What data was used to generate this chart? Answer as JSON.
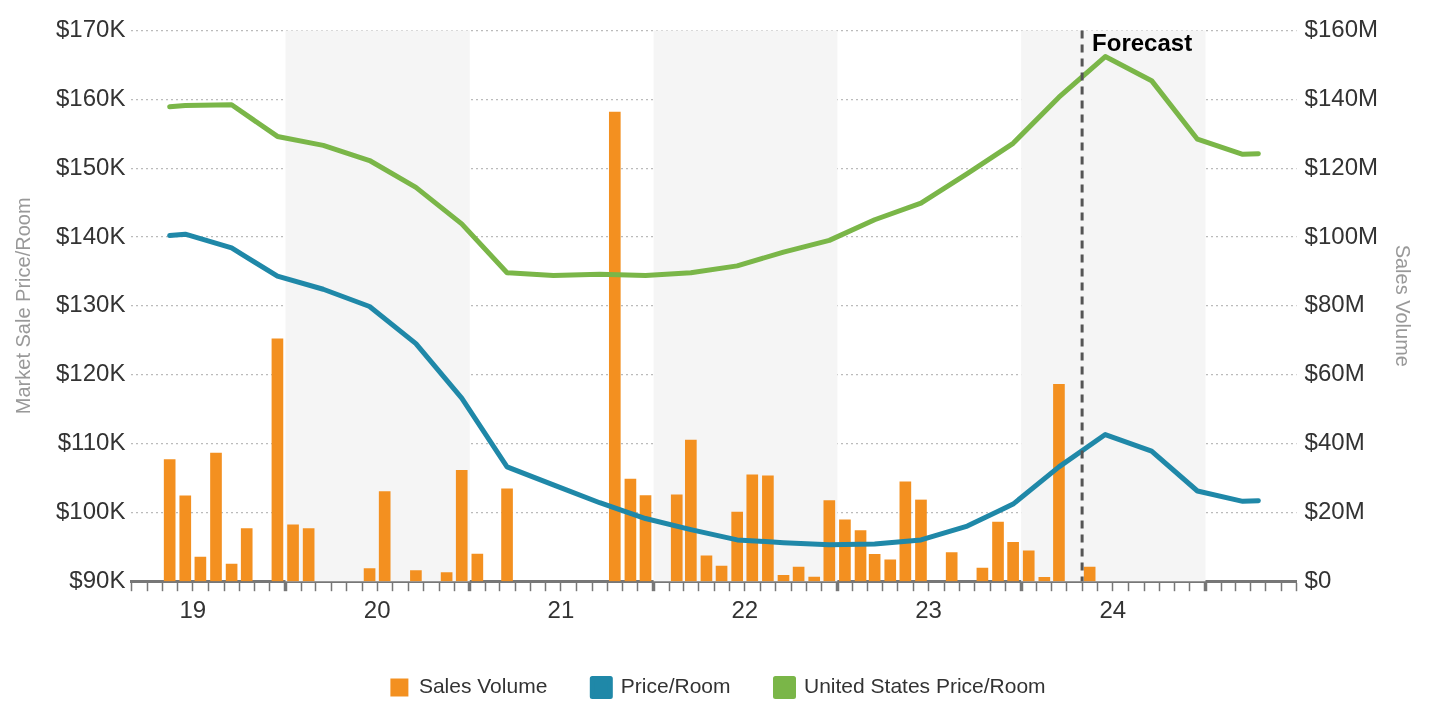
{
  "chart_data": {
    "type": "bar",
    "ylabel": "Market Sale Price/Room",
    "y2label": "Sales Volume",
    "xlim": [
      "2019-03-01",
      "2025-07-01"
    ],
    "xticks": [
      {
        "value": "2019-03-01",
        "label": null
      },
      {
        "value": "2019-04-01",
        "label": null
      },
      {
        "value": "2019-05-01",
        "label": null
      },
      {
        "value": "2019-06-01",
        "label": null
      },
      {
        "value": "2019-07-01",
        "label": "19"
      },
      {
        "value": "2019-08-01",
        "label": null
      },
      {
        "value": "2019-09-01",
        "label": null
      },
      {
        "value": "2019-10-01",
        "label": null
      },
      {
        "value": "2019-11-01",
        "label": null
      },
      {
        "value": "2019-12-01",
        "label": null
      },
      {
        "value": "2020-01-01",
        "label": null
      },
      {
        "value": "2020-02-01",
        "label": null
      },
      {
        "value": "2020-03-01",
        "label": null
      },
      {
        "value": "2020-04-01",
        "label": null
      },
      {
        "value": "2020-05-01",
        "label": null
      },
      {
        "value": "2020-06-01",
        "label": null
      },
      {
        "value": "2020-07-01",
        "label": "20"
      },
      {
        "value": "2020-08-01",
        "label": null
      },
      {
        "value": "2020-09-01",
        "label": null
      },
      {
        "value": "2020-10-01",
        "label": null
      },
      {
        "value": "2020-11-01",
        "label": null
      },
      {
        "value": "2020-12-01",
        "label": null
      },
      {
        "value": "2021-01-01",
        "label": null
      },
      {
        "value": "2021-02-01",
        "label": null
      },
      {
        "value": "2021-03-01",
        "label": null
      },
      {
        "value": "2021-04-01",
        "label": null
      },
      {
        "value": "2021-05-01",
        "label": null
      },
      {
        "value": "2021-06-01",
        "label": null
      },
      {
        "value": "2021-07-01",
        "label": "21"
      },
      {
        "value": "2021-08-01",
        "label": null
      },
      {
        "value": "2021-09-01",
        "label": null
      },
      {
        "value": "2021-10-01",
        "label": null
      },
      {
        "value": "2021-11-01",
        "label": null
      },
      {
        "value": "2021-12-01",
        "label": null
      },
      {
        "value": "2022-01-01",
        "label": null
      },
      {
        "value": "2022-02-01",
        "label": null
      },
      {
        "value": "2022-03-01",
        "label": null
      },
      {
        "value": "2022-04-01",
        "label": null
      },
      {
        "value": "2022-05-01",
        "label": null
      },
      {
        "value": "2022-06-01",
        "label": null
      },
      {
        "value": "2022-07-01",
        "label": "22"
      },
      {
        "value": "2022-08-01",
        "label": null
      },
      {
        "value": "2022-09-01",
        "label": null
      },
      {
        "value": "2022-10-01",
        "label": null
      },
      {
        "value": "2022-11-01",
        "label": null
      },
      {
        "value": "2022-12-01",
        "label": null
      },
      {
        "value": "2023-01-01",
        "label": null
      },
      {
        "value": "2023-02-01",
        "label": null
      },
      {
        "value": "2023-03-01",
        "label": null
      },
      {
        "value": "2023-04-01",
        "label": null
      },
      {
        "value": "2023-05-01",
        "label": null
      },
      {
        "value": "2023-06-01",
        "label": null
      },
      {
        "value": "2023-07-01",
        "label": "23"
      },
      {
        "value": "2023-08-01",
        "label": null
      },
      {
        "value": "2023-09-01",
        "label": null
      },
      {
        "value": "2023-10-01",
        "label": null
      },
      {
        "value": "2023-11-01",
        "label": null
      },
      {
        "value": "2023-12-01",
        "label": null
      },
      {
        "value": "2024-01-01",
        "label": null
      },
      {
        "value": "2024-02-01",
        "label": null
      },
      {
        "value": "2024-03-01",
        "label": null
      },
      {
        "value": "2024-04-01",
        "label": null
      },
      {
        "value": "2024-05-01",
        "label": null
      },
      {
        "value": "2024-06-01",
        "label": null
      },
      {
        "value": "2024-07-01",
        "label": "24"
      },
      {
        "value": "2024-08-01",
        "label": null
      },
      {
        "value": "2024-09-01",
        "label": null
      },
      {
        "value": "2024-10-01",
        "label": null
      },
      {
        "value": "2024-11-01",
        "label": null
      },
      {
        "value": "2024-12-01",
        "label": null
      },
      {
        "value": "2025-01-01",
        "label": null
      },
      {
        "value": "2025-02-01",
        "label": null
      },
      {
        "value": "2025-03-01",
        "label": null
      },
      {
        "value": "2025-04-01",
        "label": null
      },
      {
        "value": "2025-05-01",
        "label": null
      },
      {
        "value": "2025-06-01",
        "label": null
      },
      {
        "value": "2025-07-01",
        "label": null
      }
    ],
    "ylim": [
      90,
      170
    ],
    "yticks": [
      {
        "value": 90,
        "label": "$90K"
      },
      {
        "value": 100,
        "label": "$100K"
      },
      {
        "value": 110,
        "label": "$110K"
      },
      {
        "value": 120,
        "label": "$120K"
      },
      {
        "value": 130,
        "label": "$130K"
      },
      {
        "value": 140,
        "label": "$140K"
      },
      {
        "value": 150,
        "label": "$150K"
      },
      {
        "value": 160,
        "label": "$160K"
      },
      {
        "value": 170,
        "label": "$170K"
      }
    ],
    "y2lim": [
      0,
      160
    ],
    "y2ticks": [
      {
        "value": 0,
        "label": "$0"
      },
      {
        "value": 20,
        "label": "$20M"
      },
      {
        "value": 40,
        "label": "$40M"
      },
      {
        "value": 60,
        "label": "$60M"
      },
      {
        "value": 80,
        "label": "$80M"
      },
      {
        "value": 100,
        "label": "$100M"
      },
      {
        "value": 120,
        "label": "$120M"
      },
      {
        "value": 140,
        "label": "$140M"
      },
      {
        "value": 160,
        "label": "$160M"
      }
    ],
    "grid": "y",
    "legend": "bottom",
    "marker": "none",
    "bands": [
      {
        "axis": "x",
        "from": "2020-01-01",
        "to": "2021-01-01",
        "color": "#f5f5f5"
      },
      {
        "axis": "x",
        "from": "2022-01-01",
        "to": "2023-01-01",
        "color": "#f5f5f5"
      },
      {
        "axis": "x",
        "from": "2024-01-01",
        "to": "2025-01-01",
        "color": "#f5f5f5"
      }
    ],
    "ref_lines": [
      {
        "axis": "x",
        "value": "2024-05-01",
        "label": "Forecast",
        "color": "#555555",
        "line_style": "dashed"
      }
    ],
    "series": [
      {
        "name": "Sales Volume",
        "axis": "y2",
        "color": "#f39020",
        "x": [
          "2019-05-16",
          "2019-06-16",
          "2019-07-16",
          "2019-08-16",
          "2019-09-16",
          "2019-10-16",
          "2019-12-16",
          "2020-01-16",
          "2020-02-16",
          "2020-06-16",
          "2020-07-16",
          "2020-09-16",
          "2020-11-16",
          "2020-12-16",
          "2021-01-16",
          "2021-03-16",
          "2021-10-16",
          "2021-11-16",
          "2021-12-16",
          "2022-02-16",
          "2022-03-16",
          "2022-04-16",
          "2022-05-16",
          "2022-06-16",
          "2022-07-16",
          "2022-08-16",
          "2022-09-16",
          "2022-10-16",
          "2022-11-16",
          "2022-12-16",
          "2023-01-16",
          "2023-02-16",
          "2023-03-16",
          "2023-04-16",
          "2023-05-16",
          "2023-06-16",
          "2023-08-16",
          "2023-10-16",
          "2023-11-16",
          "2023-12-16",
          "2024-01-16",
          "2024-02-16",
          "2024-03-16",
          "2024-05-16"
        ],
        "values": [
          35.3,
          24.8,
          7.0,
          37.2,
          5.0,
          15.3,
          70.4,
          16.4,
          15.3,
          3.7,
          26.0,
          3.1,
          2.5,
          32.2,
          7.9,
          26.8,
          136.3,
          29.7,
          24.9,
          25.1,
          41.0,
          7.4,
          4.4,
          20.1,
          30.9,
          30.6,
          1.7,
          4.1,
          1.2,
          23.4,
          17.8,
          14.7,
          7.8,
          6.2,
          28.9,
          23.6,
          8.3,
          3.8,
          17.2,
          11.3,
          8.8,
          1.1,
          57.2,
          4.1
        ]
      },
      {
        "name": "Price/Room",
        "type": "line",
        "color": "#1f88a8",
        "x": [
          "2019-05-16",
          "2019-06-16",
          "2019-09-16",
          "2019-12-16",
          "2020-03-16",
          "2020-06-16",
          "2020-09-16",
          "2020-12-16",
          "2021-03-16",
          "2021-06-16",
          "2021-09-16",
          "2021-12-16",
          "2022-03-16",
          "2022-06-16",
          "2022-09-16",
          "2022-12-16",
          "2023-03-16",
          "2023-06-16",
          "2023-09-16",
          "2023-12-16",
          "2024-03-16",
          "2024-06-16",
          "2024-09-16",
          "2024-12-16",
          "2025-03-16",
          "2025-04-16"
        ],
        "values": [
          140.2,
          140.4,
          138.4,
          134.3,
          132.4,
          129.9,
          124.5,
          116.6,
          106.6,
          104.0,
          101.4,
          99.1,
          97.5,
          96.0,
          95.6,
          95.3,
          95.4,
          96.0,
          98.0,
          101.2,
          106.6,
          111.3,
          108.9,
          103.1,
          101.6,
          101.7
        ]
      },
      {
        "name": "United States Price/Room",
        "type": "line",
        "color": "#7ab648",
        "x": [
          "2019-05-16",
          "2019-06-16",
          "2019-09-16",
          "2019-12-16",
          "2020-03-16",
          "2020-06-16",
          "2020-09-16",
          "2020-12-16",
          "2021-03-16",
          "2021-06-16",
          "2021-09-16",
          "2021-12-16",
          "2022-03-16",
          "2022-06-16",
          "2022-09-16",
          "2022-12-16",
          "2023-03-16",
          "2023-06-16",
          "2023-09-16",
          "2023-12-16",
          "2024-03-16",
          "2024-06-16",
          "2024-09-16",
          "2024-12-16",
          "2025-03-16",
          "2025-04-16"
        ],
        "values": [
          158.9,
          159.1,
          159.2,
          154.6,
          153.3,
          151.1,
          147.2,
          141.9,
          134.8,
          134.4,
          134.6,
          134.4,
          134.8,
          135.8,
          137.8,
          139.5,
          142.5,
          144.9,
          149.2,
          153.6,
          160.3,
          166.2,
          162.7,
          154.2,
          152.0,
          152.1
        ]
      }
    ]
  }
}
